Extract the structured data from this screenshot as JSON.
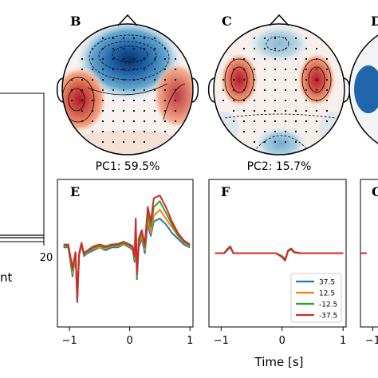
{
  "panels": {
    "topo_b": {
      "letter": "B",
      "caption": "PC1: 59.5%"
    },
    "topo_c": {
      "letter": "C",
      "caption": "PC2: 15.7%"
    },
    "topo_d": {
      "letter": "D"
    },
    "left_panel": {
      "tick_label": "20",
      "axis_label_fragment": "nt"
    },
    "wave_e": {
      "letter": "E"
    },
    "wave_f": {
      "letter": "F"
    },
    "wave_g": {
      "letter": "G"
    }
  },
  "chart_data": {
    "type": "line",
    "xlabel": "Time [s]",
    "xlim": [
      -1.2,
      1.05
    ],
    "ylim": [
      -1,
      1
    ],
    "x_ticks": [
      -1,
      0,
      1
    ],
    "x_tick_labels": [
      "−1",
      "0",
      "1"
    ],
    "legend": {
      "placement": "bottom-right of panel F"
    },
    "series_colors": {
      "37.5": "#1f77b4",
      "12.5": "#ff7f0e",
      "-12.5": "#2ca02c",
      "-37.5": "#d62728"
    },
    "panels": [
      {
        "panel": "E",
        "series": [
          {
            "name": "37.5",
            "x": [
              -1.1,
              -1.02,
              -0.95,
              -0.9,
              -0.87,
              -0.84,
              -0.8,
              -0.76,
              -0.7,
              -0.6,
              -0.5,
              -0.4,
              -0.3,
              -0.2,
              -0.1,
              0.0,
              0.05,
              0.08,
              0.1,
              0.12,
              0.15,
              0.2,
              0.25,
              0.3,
              0.35,
              0.4,
              0.5,
              0.6,
              0.7,
              0.8,
              0.9,
              1.0
            ],
            "y": [
              0.1,
              0.1,
              -0.4,
              -0.05,
              -0.85,
              -0.05,
              0.15,
              -0.05,
              0.0,
              0.05,
              0.1,
              0.05,
              0.1,
              0.1,
              0.15,
              0.1,
              0.05,
              -0.15,
              0.45,
              -0.45,
              0.1,
              0.25,
              0.0,
              0.5,
              0.3,
              0.55,
              0.6,
              0.5,
              0.35,
              0.25,
              0.15,
              0.1
            ]
          },
          {
            "name": "12.5",
            "x": [
              -1.1,
              -1.02,
              -0.95,
              -0.9,
              -0.87,
              -0.84,
              -0.8,
              -0.76,
              -0.7,
              -0.6,
              -0.5,
              -0.4,
              -0.3,
              -0.2,
              -0.1,
              0.0,
              0.05,
              0.08,
              0.1,
              0.12,
              0.15,
              0.2,
              0.25,
              0.3,
              0.35,
              0.4,
              0.5,
              0.6,
              0.7,
              0.8,
              0.9,
              1.0
            ],
            "y": [
              0.12,
              0.12,
              -0.35,
              -0.02,
              -0.8,
              -0.03,
              0.15,
              -0.03,
              0.02,
              0.08,
              0.1,
              0.08,
              0.12,
              0.12,
              0.15,
              0.12,
              0.07,
              -0.1,
              0.5,
              -0.4,
              0.15,
              0.3,
              0.05,
              0.6,
              0.35,
              0.65,
              0.75,
              0.6,
              0.45,
              0.3,
              0.18,
              0.12
            ]
          },
          {
            "name": "-12.5",
            "x": [
              -1.1,
              -1.02,
              -0.95,
              -0.9,
              -0.87,
              -0.84,
              -0.8,
              -0.76,
              -0.7,
              -0.6,
              -0.5,
              -0.4,
              -0.3,
              -0.2,
              -0.1,
              0.0,
              0.05,
              0.08,
              0.1,
              0.12,
              0.15,
              0.2,
              0.25,
              0.3,
              0.35,
              0.4,
              0.5,
              0.6,
              0.7,
              0.8,
              0.9,
              1.0
            ],
            "y": [
              0.13,
              0.13,
              -0.3,
              0.0,
              -0.78,
              -0.02,
              0.16,
              -0.02,
              0.03,
              0.1,
              0.12,
              0.1,
              0.13,
              0.14,
              0.17,
              0.13,
              0.1,
              -0.08,
              0.55,
              -0.38,
              0.2,
              0.35,
              0.1,
              0.7,
              0.45,
              0.8,
              0.9,
              0.7,
              0.5,
              0.32,
              0.2,
              0.14
            ]
          },
          {
            "name": "-37.5",
            "x": [
              -1.1,
              -1.02,
              -0.95,
              -0.9,
              -0.87,
              -0.84,
              -0.8,
              -0.76,
              -0.7,
              -0.6,
              -0.5,
              -0.4,
              -0.3,
              -0.2,
              -0.1,
              0.0,
              0.05,
              0.08,
              0.1,
              0.12,
              0.15,
              0.2,
              0.25,
              0.3,
              0.35,
              0.4,
              0.5,
              0.6,
              0.7,
              0.8,
              0.9,
              1.0
            ],
            "y": [
              0.15,
              0.15,
              -0.25,
              0.02,
              -0.82,
              0.0,
              0.18,
              0.0,
              0.05,
              0.12,
              0.15,
              0.12,
              0.15,
              0.16,
              0.2,
              0.15,
              0.12,
              -0.05,
              0.6,
              -0.35,
              0.25,
              0.4,
              0.15,
              0.8,
              0.55,
              0.95,
              1.0,
              0.8,
              0.55,
              0.35,
              0.22,
              0.15
            ]
          }
        ]
      },
      {
        "panel": "F",
        "series": [
          {
            "name": "37.5",
            "x": [
              -1.1,
              -0.95,
              -0.9,
              -0.85,
              -0.8,
              -0.7,
              -0.5,
              -0.3,
              -0.1,
              0.0,
              0.05,
              0.1,
              0.15,
              0.2,
              0.3,
              0.5,
              0.7,
              0.9,
              1.0
            ],
            "y": [
              0.0,
              0.0,
              0.05,
              0.1,
              0.0,
              0.0,
              0.0,
              0.0,
              0.0,
              -0.05,
              -0.1,
              0.05,
              0.08,
              0.02,
              0.0,
              0.0,
              0.0,
              0.0,
              0.0
            ]
          },
          {
            "name": "12.5",
            "x": [
              -1.1,
              -0.95,
              -0.9,
              -0.85,
              -0.8,
              -0.7,
              -0.5,
              -0.3,
              -0.1,
              0.0,
              0.05,
              0.1,
              0.15,
              0.2,
              0.3,
              0.5,
              0.7,
              0.9,
              1.0
            ],
            "y": [
              0.0,
              0.0,
              0.06,
              0.11,
              0.0,
              0.0,
              0.0,
              0.0,
              0.0,
              -0.06,
              -0.12,
              0.04,
              0.07,
              0.02,
              0.0,
              0.0,
              0.0,
              0.0,
              0.0
            ]
          },
          {
            "name": "-12.5",
            "x": [
              -1.1,
              -0.95,
              -0.9,
              -0.85,
              -0.8,
              -0.7,
              -0.5,
              -0.3,
              -0.1,
              0.0,
              0.05,
              0.1,
              0.15,
              0.2,
              0.3,
              0.5,
              0.7,
              0.9,
              1.0
            ],
            "y": [
              0.0,
              0.0,
              0.06,
              0.1,
              0.0,
              0.0,
              0.0,
              0.0,
              0.0,
              -0.05,
              -0.11,
              0.04,
              0.06,
              0.01,
              0.0,
              0.0,
              0.0,
              0.0,
              0.0
            ]
          },
          {
            "name": "-37.5",
            "x": [
              -1.1,
              -0.95,
              -0.9,
              -0.85,
              -0.8,
              -0.7,
              -0.5,
              -0.3,
              -0.1,
              0.0,
              0.05,
              0.1,
              0.15,
              0.2,
              0.3,
              0.5,
              0.7,
              0.9,
              1.0
            ],
            "y": [
              0.0,
              0.0,
              0.07,
              0.12,
              0.0,
              0.0,
              0.0,
              0.0,
              0.0,
              -0.07,
              -0.13,
              0.05,
              0.08,
              0.02,
              0.0,
              0.0,
              0.0,
              0.0,
              0.0
            ]
          }
        ]
      },
      {
        "panel": "G",
        "series": [
          {
            "name": "37.5",
            "x": [
              -1.2,
              -1.15,
              -1.1
            ],
            "y": [
              0.0,
              0.0,
              0.0
            ]
          },
          {
            "name": "12.5",
            "x": [
              -1.2,
              -1.15,
              -1.1
            ],
            "y": [
              0.0,
              0.0,
              0.0
            ]
          },
          {
            "name": "-12.5",
            "x": [
              -1.2,
              -1.15,
              -1.1
            ],
            "y": [
              0.0,
              0.0,
              0.0
            ]
          },
          {
            "name": "-37.5",
            "x": [
              -1.2,
              -1.15,
              -1.1
            ],
            "y": [
              0.0,
              0.0,
              0.0
            ]
          }
        ]
      }
    ]
  }
}
